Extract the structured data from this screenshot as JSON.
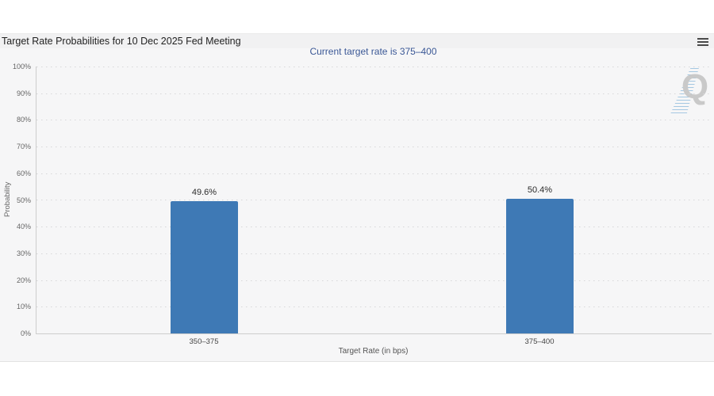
{
  "header": {
    "title": "Target Rate Probabilities for 10 Dec 2025 Fed Meeting"
  },
  "chart_data": {
    "type": "bar",
    "title": "Target Rate Probabilities for 10 Dec 2025 Fed Meeting",
    "subtitle": "Current target rate is 375–400",
    "categories": [
      "350–375",
      "375–400"
    ],
    "values": [
      49.6,
      50.4
    ],
    "bar_labels": [
      "49.6%",
      "50.4%"
    ],
    "xlabel": "Target Rate (in bps)",
    "ylabel": "Probability",
    "ylim": [
      0,
      100
    ],
    "ytick_step": 10,
    "ytick_labels": [
      "0%",
      "10%",
      "20%",
      "30%",
      "40%",
      "50%",
      "60%",
      "70%",
      "80%",
      "90%",
      "100%"
    ],
    "legend": "none",
    "grid": "dotted-horizontal",
    "bar_color": "#3e79b5",
    "subtitle_color": "#3a5795"
  },
  "watermark": {
    "letter": "Q"
  }
}
